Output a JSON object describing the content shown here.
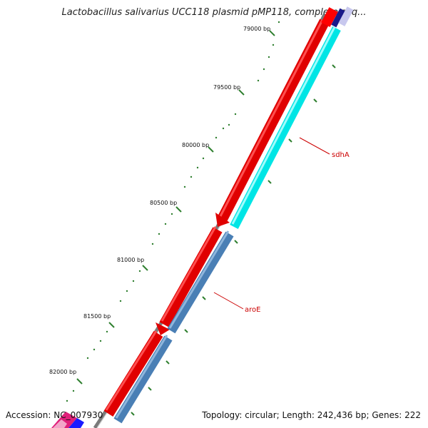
{
  "title": "Lactobacillus salivarius UCC118 plasmid pMP118, complete seq...",
  "footer": {
    "accession": "Accession: NC_007930",
    "summary": "Topology: circular; Length: 242,436 bp; Genes: 222"
  },
  "ruler": {
    "labels": [
      "79000 bp",
      "79500 bp",
      "80000 bp",
      "80500 bp",
      "81000 bp",
      "81500 bp",
      "82000 bp"
    ]
  },
  "genes": [
    {
      "name": "sdhA",
      "label": "sdhA",
      "color": "#ff0000"
    },
    {
      "name": "aroE",
      "label": "aroE",
      "color": "#ff0000"
    }
  ],
  "colors": {
    "forward_track": "#ff0000",
    "reverse_track_top": "#00ffff",
    "reverse_track_bottom": "#4a7fb5",
    "backbone": "#808080",
    "ticks": "#2f7f2f",
    "label_line": "#cc0000"
  }
}
